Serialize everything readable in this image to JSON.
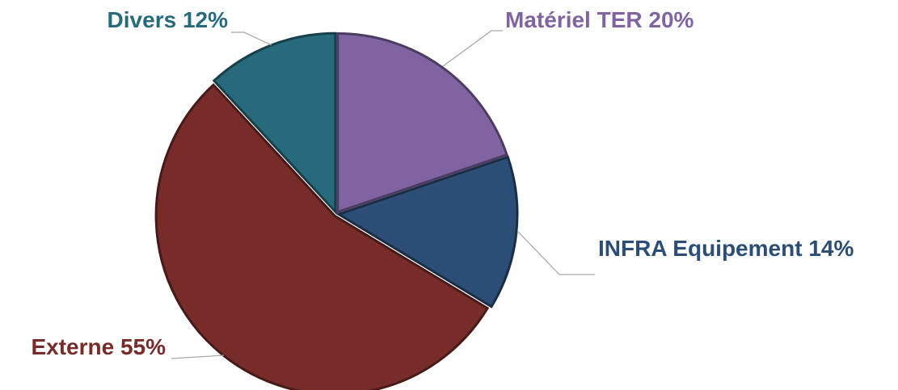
{
  "chart_data": {
    "type": "pie",
    "categories": [
      "Matériel TER",
      "INFRA Equipement",
      "Externe",
      "Divers"
    ],
    "values": [
      20,
      14,
      55,
      12
    ],
    "value_labels": [
      "20%",
      "14%",
      "55%",
      "12%"
    ],
    "colors": [
      "#8064a2",
      "#2c4d75",
      "#772c2a",
      "#276a7c"
    ]
  }
}
